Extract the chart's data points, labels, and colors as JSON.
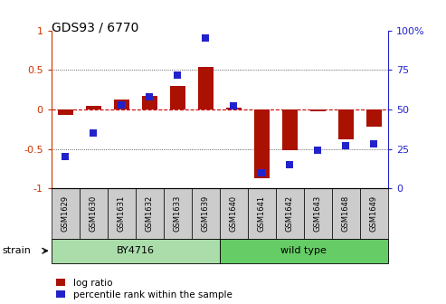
{
  "title": "GDS93 / 6770",
  "samples": [
    "GSM1629",
    "GSM1630",
    "GSM1631",
    "GSM1632",
    "GSM1633",
    "GSM1639",
    "GSM1640",
    "GSM1641",
    "GSM1642",
    "GSM1643",
    "GSM1648",
    "GSM1649"
  ],
  "log_ratio": [
    -0.07,
    0.05,
    0.13,
    0.17,
    0.3,
    0.54,
    0.02,
    -0.87,
    -0.52,
    -0.02,
    -0.38,
    -0.22
  ],
  "percentile": [
    20,
    35,
    53,
    58,
    72,
    95,
    52,
    10,
    15,
    24,
    27,
    28
  ],
  "bar_color": "#aa1100",
  "dot_color": "#2222cc",
  "groups": [
    {
      "label": "BY4716",
      "start": 0,
      "end": 6,
      "color": "#aaddaa"
    },
    {
      "label": "wild type",
      "start": 6,
      "end": 12,
      "color": "#66cc66"
    }
  ],
  "ylim_left": [
    -1,
    1
  ],
  "ylim_right": [
    0,
    100
  ],
  "yticks_left": [
    -1,
    -0.5,
    0,
    0.5,
    1
  ],
  "ytick_labels_left": [
    "-1",
    "-0.5",
    "0",
    "0.5",
    "1"
  ],
  "yticks_right": [
    0,
    25,
    50,
    75,
    100
  ],
  "ytick_labels_right": [
    "0",
    "25",
    "50",
    "75",
    "100%"
  ],
  "hlines": [
    0.5,
    -0.5
  ],
  "zero_line_color": "#cc0000",
  "hline_color": "#333333",
  "bar_width": 0.55,
  "dot_size": 40,
  "legend_labels": [
    "log ratio",
    "percentile rank within the sample"
  ],
  "strain_label": "strain",
  "left_tick_color": "#cc3300",
  "right_tick_color": "#2222cc",
  "sample_box_color": "#cccccc",
  "background_color": "#ffffff"
}
